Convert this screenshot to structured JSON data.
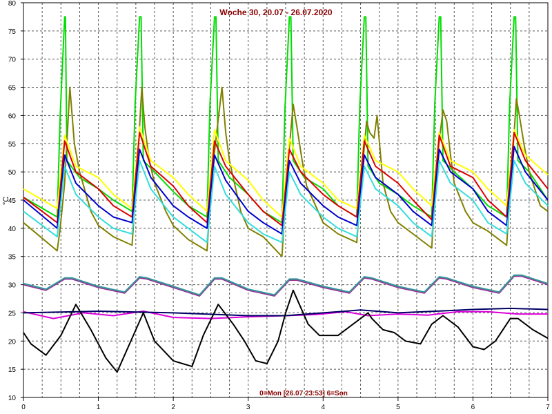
{
  "chart_data": {
    "type": "line",
    "title": "Woche 30, 20.07 - 26.07.2020",
    "footer": "0=Mon [26.07 23:53] 6=Son",
    "ylabel": "°C",
    "xlabel": "",
    "xlim": [
      0,
      7
    ],
    "ylim": [
      10,
      80
    ],
    "x_ticks": [
      0,
      1,
      2,
      3,
      4,
      5,
      6,
      7
    ],
    "y_ticks": [
      10,
      15,
      20,
      25,
      30,
      35,
      40,
      45,
      50,
      55,
      60,
      65,
      70,
      75,
      80
    ],
    "grid": true,
    "series": [
      {
        "color": "#00dd00",
        "x": [
          0,
          0.45,
          0.49,
          0.55,
          0.56,
          0.58,
          0.75,
          1.0,
          1.2,
          1.45,
          1.49,
          1.55,
          1.57,
          1.6,
          1.75,
          2.0,
          2.2,
          2.45,
          2.49,
          2.55,
          2.57,
          2.6,
          2.75,
          3.0,
          3.2,
          3.45,
          3.49,
          3.55,
          3.57,
          3.6,
          3.75,
          4.0,
          4.2,
          4.45,
          4.49,
          4.55,
          4.57,
          4.6,
          4.75,
          5.0,
          5.2,
          5.45,
          5.49,
          5.55,
          5.57,
          5.6,
          5.75,
          6.0,
          6.2,
          6.45,
          6.49,
          6.55,
          6.57,
          6.6,
          6.75,
          7.0
        ],
        "y": [
          45.5,
          42,
          60,
          77.5,
          77.5,
          52,
          49,
          47,
          45,
          43,
          62,
          77.5,
          77.5,
          52,
          50,
          46.5,
          44,
          42,
          62,
          77.5,
          77.5,
          52,
          49,
          46,
          43,
          41,
          61,
          77.5,
          77.5,
          52,
          49,
          47,
          44,
          42,
          62,
          77.5,
          77.5,
          51,
          48,
          46,
          44,
          42,
          62,
          77.5,
          77.5,
          52,
          50,
          47,
          44,
          42,
          62,
          77.5,
          77.5,
          52,
          50,
          45
        ]
      },
      {
        "color": "#808000",
        "x": [
          0,
          0.45,
          0.49,
          0.55,
          0.62,
          0.68,
          0.75,
          0.9,
          1.0,
          1.2,
          1.45,
          1.52,
          1.58,
          1.62,
          1.68,
          1.75,
          1.9,
          2.0,
          2.2,
          2.45,
          2.52,
          2.58,
          2.65,
          2.7,
          2.75,
          2.9,
          3.0,
          3.2,
          3.45,
          3.52,
          3.6,
          3.65,
          3.72,
          3.78,
          3.9,
          4.0,
          4.2,
          4.45,
          4.52,
          4.58,
          4.62,
          4.68,
          4.72,
          4.8,
          4.9,
          5.0,
          5.2,
          5.45,
          5.52,
          5.6,
          5.65,
          5.7,
          5.75,
          5.9,
          6.0,
          6.2,
          6.45,
          6.52,
          6.58,
          6.62,
          6.68,
          6.75,
          6.9,
          7.0
        ],
        "y": [
          41,
          36,
          40,
          48,
          65,
          55,
          50,
          43,
          40.5,
          38.5,
          37,
          51,
          65,
          58,
          52,
          48,
          43,
          40.5,
          38,
          36,
          50,
          57,
          65,
          57,
          52,
          43,
          40,
          38.5,
          35,
          50,
          62,
          58,
          52,
          47.5,
          44,
          41,
          39,
          37.5,
          50,
          59,
          57,
          56,
          60,
          48,
          43,
          41,
          39,
          36.5,
          52,
          61,
          59,
          53,
          48,
          43,
          41,
          39.5,
          37,
          51,
          63,
          60,
          55,
          50,
          44,
          43
        ]
      },
      {
        "color": "#ffff00",
        "x": [
          0,
          0.45,
          0.55,
          0.7,
          1.0,
          1.2,
          1.45,
          1.55,
          1.7,
          2.0,
          2.2,
          2.45,
          2.55,
          2.7,
          3.0,
          3.2,
          3.45,
          3.55,
          3.7,
          4.0,
          4.2,
          4.45,
          4.55,
          4.7,
          5.0,
          5.2,
          5.45,
          5.55,
          5.7,
          6.0,
          6.2,
          6.45,
          6.55,
          6.7,
          7.0
        ],
        "y": [
          47,
          43.5,
          56.5,
          51,
          49,
          46,
          43.5,
          58,
          52,
          49,
          46,
          43,
          57.5,
          52,
          48.5,
          45,
          42,
          56,
          51,
          48,
          45,
          43.5,
          56.5,
          52,
          50,
          47,
          44,
          57,
          52,
          50,
          47,
          44,
          57.5,
          53,
          49.5
        ]
      },
      {
        "color": "#dd0000",
        "x": [
          0,
          0.45,
          0.55,
          0.7,
          1.0,
          1.2,
          1.45,
          1.55,
          1.7,
          2.0,
          2.2,
          2.45,
          2.55,
          2.7,
          3.0,
          3.2,
          3.45,
          3.55,
          3.7,
          4.0,
          4.2,
          4.45,
          4.55,
          4.7,
          5.0,
          5.2,
          5.45,
          5.55,
          5.7,
          6.0,
          6.2,
          6.45,
          6.55,
          6.7,
          7.0
        ],
        "y": [
          45.5,
          41,
          55.5,
          50,
          47,
          44,
          42,
          57,
          51,
          47.5,
          44,
          41,
          55.5,
          51,
          46,
          43,
          40.5,
          54,
          50,
          46,
          44,
          42,
          55.5,
          51,
          48,
          45,
          41.5,
          56.5,
          51,
          49,
          45,
          42,
          57,
          52,
          47
        ]
      },
      {
        "color": "#0000cc",
        "x": [
          0,
          0.45,
          0.55,
          0.7,
          1.0,
          1.2,
          1.45,
          1.55,
          1.7,
          2.0,
          2.2,
          2.45,
          2.55,
          2.7,
          3.0,
          3.2,
          3.45,
          3.55,
          3.7,
          4.0,
          4.2,
          4.45,
          4.55,
          4.7,
          5.0,
          5.2,
          5.45,
          5.55,
          5.7,
          6.0,
          6.2,
          6.45,
          6.55,
          6.7,
          7.0
        ],
        "y": [
          45,
          40,
          53,
          48,
          44,
          42,
          41,
          54,
          49,
          44,
          42,
          40,
          53,
          48.5,
          43,
          41,
          39,
          52,
          48,
          44,
          42,
          40.5,
          53,
          49,
          46,
          43,
          40.5,
          54,
          50,
          47,
          43,
          40.5,
          54.5,
          50,
          45
        ]
      },
      {
        "color": "#33dddd",
        "x": [
          0,
          0.45,
          0.55,
          0.7,
          1.0,
          1.2,
          1.45,
          1.55,
          1.7,
          2.0,
          2.2,
          2.45,
          2.55,
          2.7,
          3.0,
          3.2,
          3.45,
          3.55,
          3.7,
          4.0,
          4.2,
          4.45,
          4.55,
          4.7,
          5.0,
          5.2,
          5.45,
          5.55,
          5.7,
          6.0,
          6.2,
          6.45,
          6.55,
          6.7,
          7.0
        ],
        "y": [
          43,
          38.5,
          51,
          46,
          42,
          40,
          39,
          52,
          47,
          42,
          40,
          37.5,
          51,
          46,
          41,
          39,
          37.5,
          50,
          46,
          42,
          40,
          38.5,
          51,
          47,
          44,
          41,
          38.5,
          52,
          48,
          45,
          41,
          39,
          52,
          48,
          44
        ]
      },
      {
        "color": "#993399",
        "x": [
          0,
          0.3,
          0.55,
          0.65,
          1.0,
          1.35,
          1.55,
          1.65,
          2.0,
          2.35,
          2.55,
          2.65,
          3.0,
          3.35,
          3.55,
          3.65,
          4.0,
          4.35,
          4.55,
          4.65,
          5.0,
          5.35,
          5.55,
          5.65,
          6.0,
          6.35,
          6.55,
          6.65,
          7.0
        ],
        "y": [
          30,
          29,
          31,
          31,
          29.5,
          28.5,
          31.2,
          31,
          29.5,
          28,
          31,
          31,
          29,
          28,
          30.8,
          30.8,
          29.5,
          28.5,
          31.2,
          31,
          29.5,
          28.5,
          31.2,
          31,
          29.5,
          28.5,
          31.5,
          31.5,
          30
        ]
      },
      {
        "color": "#339999",
        "x": [
          0,
          0.3,
          0.55,
          0.65,
          1.0,
          1.35,
          1.55,
          1.65,
          2.0,
          2.35,
          2.55,
          2.65,
          3.0,
          3.35,
          3.55,
          3.65,
          4.0,
          4.35,
          4.55,
          4.65,
          5.0,
          5.35,
          5.55,
          5.65,
          6.0,
          6.35,
          6.55,
          6.65,
          7.0
        ],
        "y": [
          30.2,
          29.2,
          31.2,
          31.2,
          29.7,
          28.7,
          31.4,
          31.2,
          29.7,
          28.2,
          31.2,
          31.2,
          29.2,
          28.2,
          31,
          31,
          29.7,
          28.7,
          31.4,
          31.2,
          29.7,
          28.7,
          31.4,
          31.2,
          29.7,
          28.7,
          31.7,
          31.7,
          30.2
        ]
      },
      {
        "color": "#dd00dd",
        "x": [
          0,
          0.4,
          0.8,
          1.2,
          1.6,
          2.0,
          2.5,
          3.0,
          3.5,
          3.9,
          4.3,
          4.6,
          5.0,
          5.4,
          5.8,
          6.2,
          6.6,
          7.0
        ],
        "y": [
          25.2,
          24,
          25,
          24.5,
          25.3,
          24.2,
          24,
          24.3,
          24.5,
          24.7,
          25.2,
          24.5,
          24.8,
          24.6,
          25.2,
          25.2,
          24.8,
          24.8
        ]
      },
      {
        "color": "#000066",
        "x": [
          0,
          1.0,
          2.0,
          3.0,
          3.5,
          4.0,
          4.5,
          5.0,
          5.5,
          6.0,
          6.5,
          7.0
        ],
        "y": [
          25,
          25.3,
          25,
          24.5,
          24.5,
          25,
          25.5,
          25,
          25.3,
          25.6,
          25.8,
          25.6
        ]
      },
      {
        "color": "#000000",
        "x": [
          0,
          0.1,
          0.3,
          0.5,
          0.7,
          0.9,
          1.1,
          1.25,
          1.5,
          1.6,
          1.75,
          2.0,
          2.25,
          2.4,
          2.6,
          2.8,
          2.95,
          3.1,
          3.25,
          3.4,
          3.5,
          3.6,
          3.7,
          3.8,
          3.95,
          4.2,
          4.45,
          4.6,
          4.65,
          4.8,
          4.95,
          5.1,
          5.3,
          5.45,
          5.6,
          5.8,
          6.0,
          6.15,
          6.3,
          6.5,
          6.6,
          6.8,
          7.0
        ],
        "y": [
          21.5,
          19.5,
          17.5,
          21,
          26.5,
          22,
          17,
          14.5,
          22,
          25,
          20,
          16.5,
          15.5,
          21,
          26.5,
          23,
          20,
          16.5,
          16,
          20,
          25,
          29,
          26,
          23,
          21,
          21,
          23.5,
          25,
          24,
          22,
          21.5,
          20,
          19.5,
          23,
          24.5,
          22.5,
          19,
          18.5,
          20,
          24,
          24,
          22,
          20.5
        ]
      }
    ]
  },
  "meta": {
    "dummy": ""
  }
}
